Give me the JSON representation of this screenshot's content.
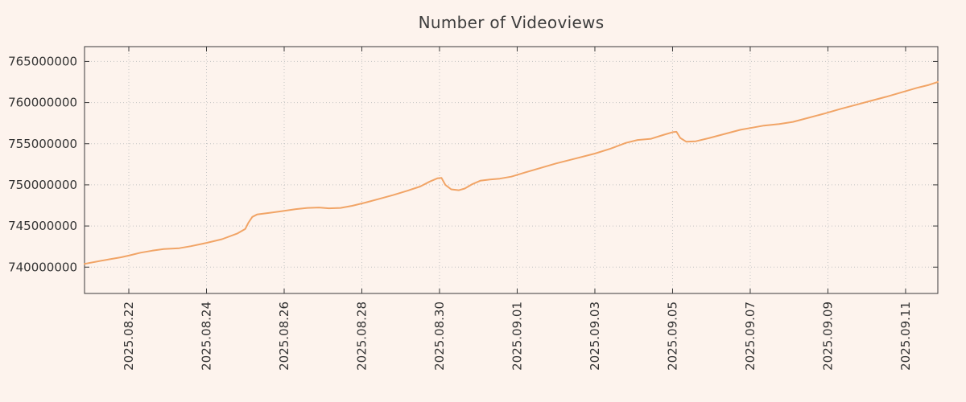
{
  "chart_data": {
    "type": "line",
    "title": "Number of Videoviews",
    "xlabel": "",
    "ylabel": "",
    "legend": "none",
    "grid": "dotted",
    "background_color": "#fdf3ed",
    "line_color": "#f1a466",
    "axis_color": "#3a3a3a",
    "grid_color": "#c4c4c4",
    "text_color": "#333333",
    "x_range_days": [
      -0.14,
      21.83
    ],
    "y_range": [
      736800000,
      766800000
    ],
    "y_ticks": [
      740000000,
      745000000,
      750000000,
      755000000,
      760000000,
      765000000
    ],
    "x_ticks": [
      {
        "t": 1,
        "label": "2025.08.22"
      },
      {
        "t": 3,
        "label": "2025.08.24"
      },
      {
        "t": 5,
        "label": "2025.08.26"
      },
      {
        "t": 7,
        "label": "2025.08.28"
      },
      {
        "t": 9,
        "label": "2025.08.30"
      },
      {
        "t": 11,
        "label": "2025.09.01"
      },
      {
        "t": 13,
        "label": "2025.09.03"
      },
      {
        "t": 15,
        "label": "2025.09.05"
      },
      {
        "t": 17,
        "label": "2025.09.07"
      },
      {
        "t": 19,
        "label": "2025.09.09"
      },
      {
        "t": 21,
        "label": "2025.09.11"
      }
    ],
    "points": [
      [
        -0.14,
        740400000
      ],
      [
        0.2,
        740700000
      ],
      [
        0.5,
        740950000
      ],
      [
        0.8,
        741200000
      ],
      [
        1.0,
        741400000
      ],
      [
        1.3,
        741750000
      ],
      [
        1.6,
        742000000
      ],
      [
        1.9,
        742200000
      ],
      [
        2.3,
        742300000
      ],
      [
        2.6,
        742550000
      ],
      [
        3.0,
        742950000
      ],
      [
        3.4,
        743400000
      ],
      [
        3.8,
        744100000
      ],
      [
        4.0,
        744650000
      ],
      [
        4.08,
        745400000
      ],
      [
        4.18,
        746100000
      ],
      [
        4.3,
        746400000
      ],
      [
        4.7,
        746650000
      ],
      [
        5.0,
        746850000
      ],
      [
        5.3,
        747050000
      ],
      [
        5.6,
        747200000
      ],
      [
        5.9,
        747250000
      ],
      [
        6.15,
        747150000
      ],
      [
        6.45,
        747200000
      ],
      [
        6.75,
        747450000
      ],
      [
        7.1,
        747850000
      ],
      [
        7.45,
        748300000
      ],
      [
        7.8,
        748750000
      ],
      [
        8.15,
        749250000
      ],
      [
        8.5,
        749800000
      ],
      [
        8.75,
        750400000
      ],
      [
        8.95,
        750800000
      ],
      [
        9.05,
        750850000
      ],
      [
        9.15,
        750000000
      ],
      [
        9.3,
        749450000
      ],
      [
        9.5,
        749350000
      ],
      [
        9.65,
        749550000
      ],
      [
        9.85,
        750100000
      ],
      [
        10.05,
        750500000
      ],
      [
        10.3,
        750650000
      ],
      [
        10.55,
        750750000
      ],
      [
        10.85,
        751000000
      ],
      [
        11.2,
        751500000
      ],
      [
        11.6,
        752050000
      ],
      [
        12.0,
        752600000
      ],
      [
        12.5,
        753200000
      ],
      [
        13.0,
        753800000
      ],
      [
        13.4,
        754400000
      ],
      [
        13.8,
        755100000
      ],
      [
        14.1,
        755450000
      ],
      [
        14.45,
        755600000
      ],
      [
        14.75,
        756050000
      ],
      [
        15.0,
        756400000
      ],
      [
        15.1,
        756450000
      ],
      [
        15.2,
        755700000
      ],
      [
        15.35,
        755250000
      ],
      [
        15.6,
        755300000
      ],
      [
        15.95,
        755700000
      ],
      [
        16.35,
        756200000
      ],
      [
        16.75,
        756700000
      ],
      [
        17.05,
        756950000
      ],
      [
        17.35,
        757200000
      ],
      [
        17.75,
        757400000
      ],
      [
        18.1,
        757650000
      ],
      [
        18.5,
        758150000
      ],
      [
        18.9,
        758650000
      ],
      [
        19.3,
        759200000
      ],
      [
        19.7,
        759700000
      ],
      [
        20.1,
        760200000
      ],
      [
        20.5,
        760700000
      ],
      [
        20.9,
        761250000
      ],
      [
        21.3,
        761800000
      ],
      [
        21.6,
        762150000
      ],
      [
        21.83,
        762500000
      ]
    ]
  }
}
